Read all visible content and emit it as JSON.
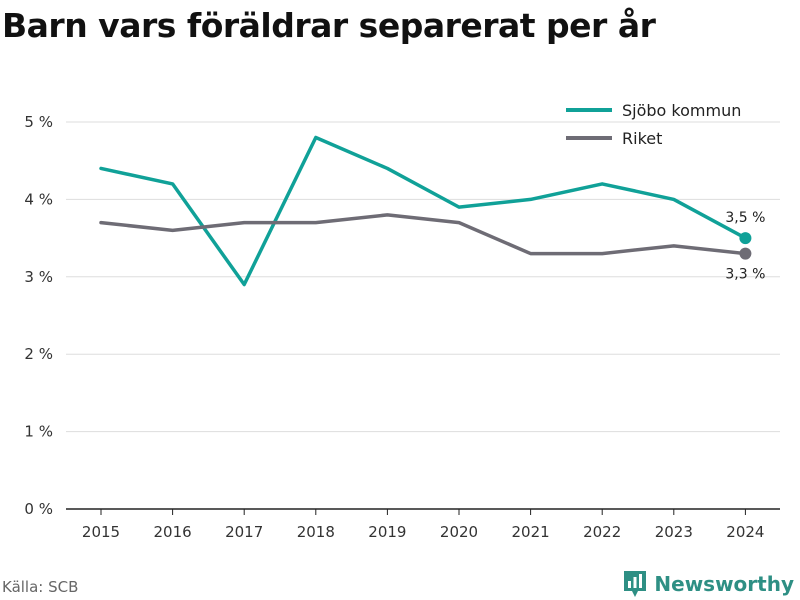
{
  "title": "Barn vars föräldrar separerat per år",
  "source": "Källa: SCB",
  "brand": {
    "name": "Newsworthy",
    "icon": "newsworthy-logo-icon",
    "color": "#2e8f84"
  },
  "chart_data": {
    "type": "line",
    "title": "Barn vars föräldrar separerat per år",
    "xlabel": "",
    "ylabel": "",
    "x": [
      "2015",
      "2016",
      "2017",
      "2018",
      "2019",
      "2020",
      "2021",
      "2022",
      "2023",
      "2024"
    ],
    "series": [
      {
        "name": "Sjöbo kommun",
        "color": "#10a198",
        "values": [
          4.4,
          4.2,
          2.9,
          4.8,
          4.4,
          3.9,
          4.0,
          4.2,
          4.0,
          3.5
        ],
        "end_label": "3,5 %"
      },
      {
        "name": "Riket",
        "color": "#6e6c75",
        "values": [
          3.7,
          3.6,
          3.7,
          3.7,
          3.8,
          3.7,
          3.3,
          3.3,
          3.4,
          3.3
        ],
        "end_label": "3,3 %"
      }
    ],
    "ylim": [
      0,
      5
    ],
    "yticks": [
      0,
      1,
      2,
      3,
      4,
      5
    ],
    "ytick_labels": [
      "0 %",
      "1 %",
      "2 %",
      "3 %",
      "4 %",
      "5 %"
    ],
    "grid": true,
    "legend": "top-right"
  }
}
